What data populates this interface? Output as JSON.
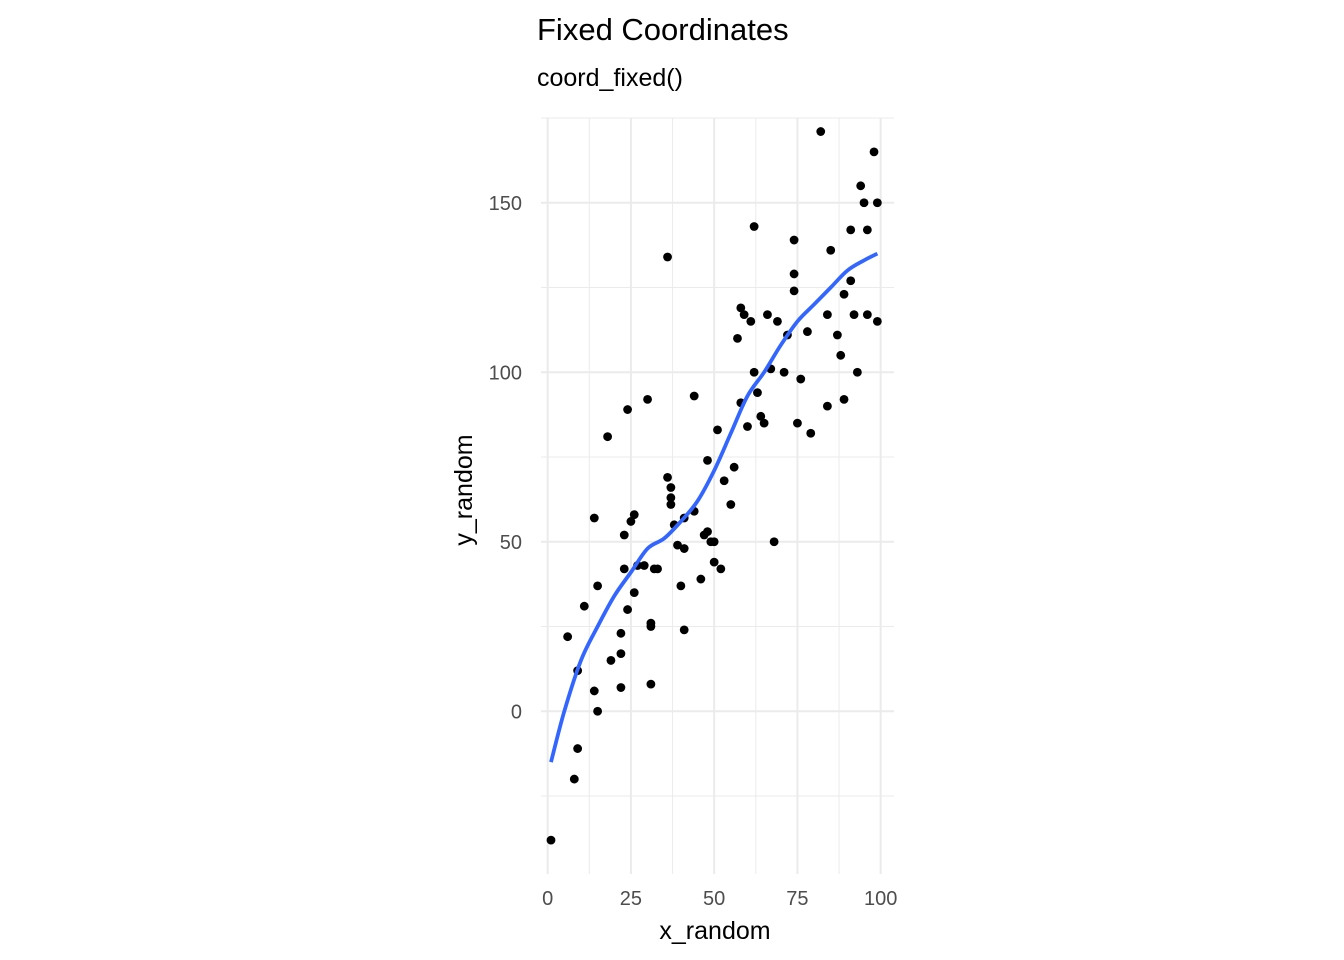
{
  "chart_data": {
    "type": "scatter",
    "title": "Fixed Coordinates",
    "subtitle": "coord_fixed()",
    "xlabel": "x_random",
    "ylabel": "y_random",
    "xlim": [
      -2,
      104
    ],
    "ylim": [
      -48,
      175
    ],
    "x_ticks": [
      0,
      25,
      50,
      75,
      100
    ],
    "x_tick_labels": [
      "0",
      "25",
      "50",
      "75",
      "100"
    ],
    "y_ticks": [
      0,
      50,
      100,
      150
    ],
    "y_tick_labels": [
      "0",
      "50",
      "100",
      "150"
    ],
    "grid": true,
    "point_color": "#000000",
    "smooth_color": "#3366FF",
    "points": [
      [
        1,
        -38
      ],
      [
        6,
        22
      ],
      [
        8,
        -20
      ],
      [
        9,
        12
      ],
      [
        9,
        -11
      ],
      [
        11,
        31
      ],
      [
        14,
        57
      ],
      [
        14,
        6
      ],
      [
        15,
        37
      ],
      [
        15,
        0
      ],
      [
        18,
        81
      ],
      [
        19,
        15
      ],
      [
        22,
        23
      ],
      [
        22,
        17
      ],
      [
        22,
        7
      ],
      [
        23,
        42
      ],
      [
        23,
        52
      ],
      [
        24,
        89
      ],
      [
        24,
        30
      ],
      [
        25,
        56
      ],
      [
        26,
        58
      ],
      [
        26,
        35
      ],
      [
        27,
        43
      ],
      [
        29,
        43
      ],
      [
        30,
        92
      ],
      [
        31,
        25
      ],
      [
        31,
        26
      ],
      [
        31,
        8
      ],
      [
        32,
        42
      ],
      [
        33,
        42
      ],
      [
        36,
        134
      ],
      [
        36,
        69
      ],
      [
        37,
        66
      ],
      [
        37,
        63
      ],
      [
        37,
        61
      ],
      [
        38,
        55
      ],
      [
        39,
        49
      ],
      [
        40,
        37
      ],
      [
        41,
        57
      ],
      [
        41,
        48
      ],
      [
        41,
        24
      ],
      [
        44,
        93
      ],
      [
        44,
        59
      ],
      [
        46,
        39
      ],
      [
        47,
        52
      ],
      [
        48,
        74
      ],
      [
        48,
        53
      ],
      [
        49,
        50
      ],
      [
        50,
        50
      ],
      [
        50,
        44
      ],
      [
        51,
        83
      ],
      [
        52,
        42
      ],
      [
        53,
        68
      ],
      [
        55,
        61
      ],
      [
        56,
        72
      ],
      [
        57,
        110
      ],
      [
        58,
        119
      ],
      [
        58,
        91
      ],
      [
        59,
        117
      ],
      [
        60,
        84
      ],
      [
        61,
        115
      ],
      [
        62,
        143
      ],
      [
        62,
        100
      ],
      [
        63,
        94
      ],
      [
        64,
        87
      ],
      [
        65,
        85
      ],
      [
        66,
        117
      ],
      [
        67,
        101
      ],
      [
        68,
        50
      ],
      [
        69,
        115
      ],
      [
        71,
        100
      ],
      [
        72,
        111
      ],
      [
        74,
        139
      ],
      [
        74,
        129
      ],
      [
        74,
        124
      ],
      [
        75,
        85
      ],
      [
        76,
        98
      ],
      [
        78,
        112
      ],
      [
        79,
        82
      ],
      [
        82,
        171
      ],
      [
        84,
        117
      ],
      [
        84,
        90
      ],
      [
        85,
        136
      ],
      [
        87,
        111
      ],
      [
        88,
        105
      ],
      [
        89,
        92
      ],
      [
        89,
        123
      ],
      [
        91,
        127
      ],
      [
        91,
        142
      ],
      [
        92,
        117
      ],
      [
        93,
        100
      ],
      [
        94,
        155
      ],
      [
        95,
        150
      ],
      [
        96,
        142
      ],
      [
        96,
        117
      ],
      [
        98,
        165
      ],
      [
        99,
        150
      ],
      [
        99,
        115
      ]
    ],
    "smooth_line": [
      [
        1,
        -15
      ],
      [
        5,
        0
      ],
      [
        10,
        15
      ],
      [
        15,
        25
      ],
      [
        20,
        34
      ],
      [
        25,
        41
      ],
      [
        30,
        48
      ],
      [
        35,
        51
      ],
      [
        40,
        56
      ],
      [
        45,
        62
      ],
      [
        50,
        71
      ],
      [
        55,
        82
      ],
      [
        60,
        93
      ],
      [
        65,
        100
      ],
      [
        70,
        108
      ],
      [
        75,
        115
      ],
      [
        80,
        120
      ],
      [
        85,
        125
      ],
      [
        90,
        130
      ],
      [
        95,
        133
      ],
      [
        99,
        135
      ]
    ]
  }
}
